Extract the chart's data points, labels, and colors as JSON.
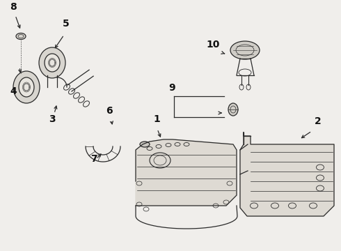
{
  "bg_color": "#f0eeeb",
  "line_color": "#2a2a2a",
  "text_color": "#111111",
  "fig_w": 4.9,
  "fig_h": 3.6,
  "dpi": 100,
  "xmax": 490,
  "ymax": 360
}
